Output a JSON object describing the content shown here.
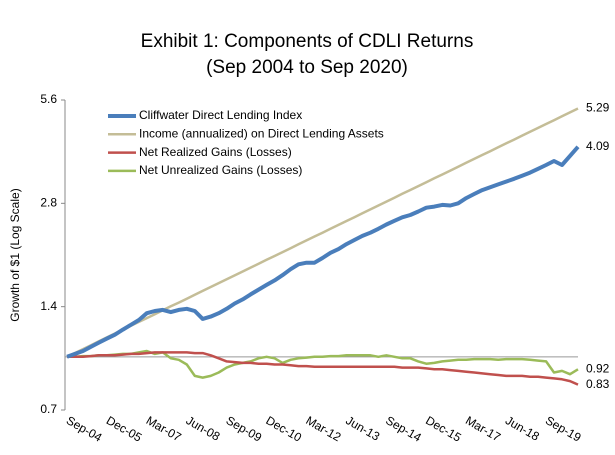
{
  "chart_data": {
    "type": "line",
    "title": "Exhibit 1: Components of CDLI Returns",
    "subtitle": "(Sep 2004 to Sep 2020)",
    "y_label": "Growth of $1 (Log Scale)",
    "log_scale": true,
    "ylim": [
      0.7,
      5.6
    ],
    "yticks": [
      0.7,
      1.4,
      2.8,
      5.6
    ],
    "reference_line": 1,
    "legend": "top-left",
    "categories": [
      "Sep-04",
      null,
      null,
      null,
      null,
      "Dec-05",
      null,
      null,
      null,
      null,
      "Mar-07",
      null,
      null,
      null,
      null,
      "Jun-08",
      null,
      null,
      null,
      null,
      "Sep-09",
      null,
      null,
      null,
      null,
      "Dec-10",
      null,
      null,
      null,
      null,
      "Mar-12",
      null,
      null,
      null,
      null,
      "Jun-13",
      null,
      null,
      null,
      null,
      "Sep-14",
      null,
      null,
      null,
      null,
      "Dec-15",
      null,
      null,
      null,
      null,
      "Mar-17",
      null,
      null,
      null,
      null,
      "Jun-18",
      null,
      null,
      null,
      null,
      "Sep-19",
      null,
      null,
      null,
      null
    ],
    "series": [
      {
        "name": "Cliffwater Direct Lending Index",
        "color": "#4a7ebb",
        "width": 4,
        "values": [
          1.0,
          1.02,
          1.04,
          1.07,
          1.1,
          1.13,
          1.16,
          1.2,
          1.24,
          1.28,
          1.34,
          1.36,
          1.37,
          1.35,
          1.37,
          1.38,
          1.36,
          1.29,
          1.31,
          1.34,
          1.38,
          1.43,
          1.47,
          1.52,
          1.57,
          1.62,
          1.67,
          1.73,
          1.8,
          1.86,
          1.88,
          1.88,
          1.94,
          2.01,
          2.06,
          2.13,
          2.19,
          2.25,
          2.3,
          2.36,
          2.43,
          2.49,
          2.55,
          2.59,
          2.65,
          2.72,
          2.74,
          2.77,
          2.76,
          2.8,
          2.9,
          2.98,
          3.06,
          3.12,
          3.18,
          3.24,
          3.3,
          3.37,
          3.44,
          3.53,
          3.62,
          3.72,
          3.62,
          3.85,
          4.09
        ]
      },
      {
        "name": "Income (annualized) on Direct Lending Assets",
        "color": "#c4bd97",
        "width": 2.5,
        "values": [
          1.0,
          1.026,
          1.053,
          1.081,
          1.11,
          1.139,
          1.169,
          1.2,
          1.231,
          1.264,
          1.297,
          1.331,
          1.366,
          1.403,
          1.439,
          1.477,
          1.516,
          1.556,
          1.597,
          1.64,
          1.683,
          1.727,
          1.773,
          1.82,
          1.867,
          1.917,
          1.967,
          2.019,
          2.072,
          2.127,
          2.183,
          2.241,
          2.3,
          2.36,
          2.423,
          2.487,
          2.552,
          2.619,
          2.689,
          2.76,
          2.832,
          2.907,
          2.984,
          3.062,
          3.143,
          3.226,
          3.311,
          3.398,
          3.488,
          3.58,
          3.674,
          3.771,
          3.871,
          3.973,
          4.077,
          4.185,
          4.295,
          4.409,
          4.525,
          4.644,
          4.767,
          4.892,
          5.021,
          5.154,
          5.29
        ]
      },
      {
        "name": "Net Realized Gains (Losses)",
        "color": "#c0504d",
        "width": 2.5,
        "values": [
          1.0,
          1.0,
          1.0,
          1.005,
          1.01,
          1.01,
          1.01,
          1.015,
          1.02,
          1.02,
          1.025,
          1.03,
          1.03,
          1.03,
          1.03,
          1.03,
          1.025,
          1.025,
          1.01,
          0.99,
          0.97,
          0.965,
          0.96,
          0.96,
          0.955,
          0.955,
          0.95,
          0.95,
          0.945,
          0.94,
          0.94,
          0.935,
          0.935,
          0.935,
          0.935,
          0.935,
          0.935,
          0.935,
          0.935,
          0.935,
          0.935,
          0.935,
          0.93,
          0.93,
          0.93,
          0.925,
          0.92,
          0.92,
          0.915,
          0.91,
          0.905,
          0.9,
          0.895,
          0.89,
          0.885,
          0.88,
          0.88,
          0.88,
          0.875,
          0.875,
          0.87,
          0.865,
          0.86,
          0.85,
          0.83
        ]
      },
      {
        "name": "Net Unrealized Gains (Losses)",
        "color": "#9bbb59",
        "width": 2.5,
        "values": [
          1.0,
          1.0,
          1.005,
          1.005,
          1.01,
          1.01,
          1.015,
          1.02,
          1.02,
          1.03,
          1.04,
          1.02,
          1.03,
          0.99,
          0.98,
          0.95,
          0.88,
          0.87,
          0.88,
          0.9,
          0.93,
          0.95,
          0.96,
          0.97,
          0.99,
          1.0,
          0.99,
          0.96,
          0.98,
          0.99,
          0.995,
          1.0,
          1.0,
          1.005,
          1.005,
          1.01,
          1.01,
          1.01,
          1.01,
          1.0,
          1.01,
          1.0,
          0.99,
          0.99,
          0.97,
          0.955,
          0.96,
          0.97,
          0.975,
          0.98,
          0.98,
          0.985,
          0.985,
          0.985,
          0.98,
          0.985,
          0.985,
          0.985,
          0.98,
          0.975,
          0.97,
          0.9,
          0.91,
          0.89,
          0.92
        ]
      }
    ]
  }
}
